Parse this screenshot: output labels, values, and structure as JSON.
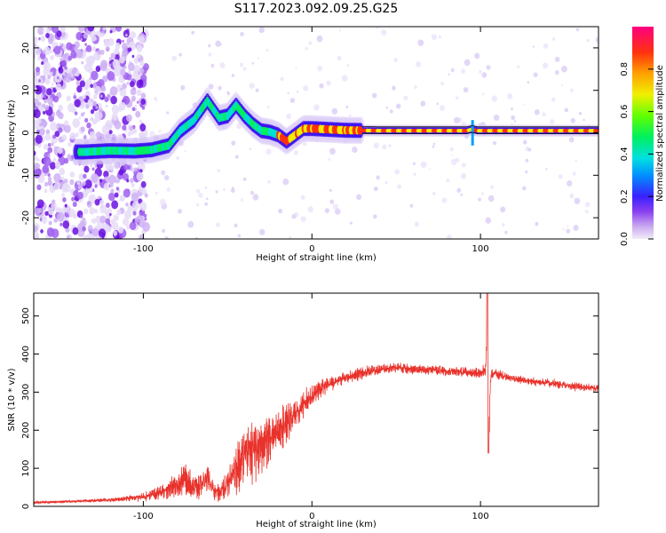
{
  "title": "S117.2023.092.09.25.G25",
  "chart_data": [
    {
      "type": "heatmap",
      "xlabel": "Height of straight line (km)",
      "ylabel": "Frequency (Hz)",
      "xlim": [
        -165,
        170
      ],
      "ylim": [
        -25,
        25
      ],
      "xticks": [
        -100,
        0,
        100
      ],
      "yticks": [
        -20,
        -10,
        0,
        10,
        20
      ],
      "colorbar": {
        "label": "Normalized spectral amplitude",
        "range": [
          0,
          1
        ],
        "ticks": [
          0.0,
          0.2,
          0.4,
          0.6,
          0.8
        ]
      },
      "ridge": {
        "description_points_x": [
          -135,
          -120,
          -105,
          -95,
          -85,
          -78,
          -70,
          -62,
          -55,
          -50,
          -45,
          -40,
          -35,
          -30,
          -25,
          -20,
          -15,
          -10,
          -5,
          0,
          10,
          20,
          40,
          60,
          80,
          92,
          95,
          98,
          120,
          150,
          170
        ],
        "description_points_y": [
          -4.5,
          -4.2,
          -4.3,
          -4.0,
          -3.0,
          0.5,
          3.0,
          7.5,
          3.5,
          4.0,
          6.5,
          4.0,
          2.0,
          0.5,
          0.2,
          -0.5,
          -2.0,
          -0.5,
          1.0,
          1.0,
          0.8,
          0.6,
          0.5,
          0.5,
          0.5,
          0.5,
          0.8,
          0.5,
          0.5,
          0.5,
          0.5
        ]
      }
    },
    {
      "type": "line",
      "xlabel": "Height of straight line (km)",
      "ylabel": "SNR (10 * v/v)",
      "xlim": [
        -165,
        170
      ],
      "ylim": [
        0,
        560
      ],
      "xticks": [
        -100,
        0,
        100
      ],
      "yticks": [
        0,
        100,
        200,
        300,
        400,
        500
      ],
      "series": [
        {
          "color": "#e8322b",
          "x": [
            -165,
            -150,
            -130,
            -115,
            -100,
            -88,
            -80,
            -75,
            -70,
            -65,
            -62,
            -58,
            -55,
            -50,
            -45,
            -40,
            -35,
            -30,
            -25,
            -20,
            -15,
            -10,
            -5,
            0,
            5,
            10,
            15,
            20,
            25,
            30,
            40,
            50,
            60,
            70,
            80,
            90,
            100,
            103,
            104,
            105,
            106,
            108,
            115,
            125,
            140,
            155,
            170
          ],
          "y": [
            10,
            12,
            15,
            18,
            25,
            40,
            55,
            70,
            50,
            60,
            75,
            40,
            35,
            60,
            90,
            130,
            150,
            160,
            180,
            200,
            215,
            240,
            270,
            290,
            310,
            320,
            330,
            340,
            345,
            350,
            360,
            365,
            360,
            358,
            355,
            352,
            350,
            360,
            450,
            200,
            340,
            350,
            340,
            330,
            325,
            315,
            310
          ],
          "noise": [
            2,
            3,
            4,
            5,
            10,
            20,
            30,
            40,
            30,
            30,
            30,
            20,
            20,
            40,
            60,
            70,
            80,
            70,
            60,
            55,
            50,
            40,
            35,
            25,
            22,
            18,
            15,
            15,
            15,
            15,
            12,
            12,
            12,
            12,
            12,
            12,
            12,
            15,
            80,
            80,
            15,
            12,
            10,
            10,
            10,
            10,
            10
          ]
        }
      ]
    }
  ]
}
